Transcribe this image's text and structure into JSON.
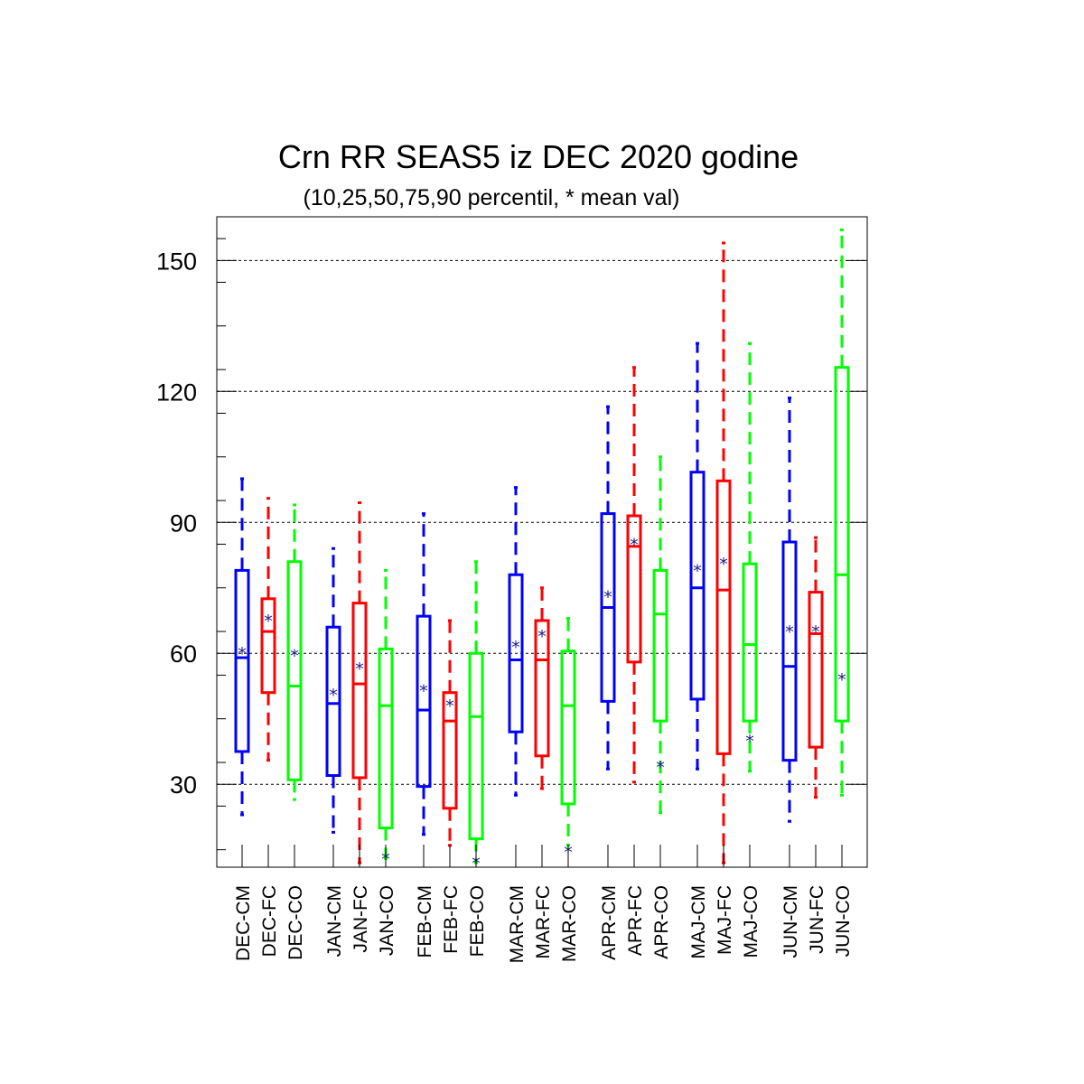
{
  "chart_data": {
    "type": "boxplot",
    "title": "Crn RR SEAS5 iz DEC 2020 godine",
    "subtitle": "(10,25,50,75,90 percentil, * mean val)",
    "xlabel": "",
    "ylabel": "",
    "ylim": [
      11,
      160
    ],
    "yticks": [
      30,
      60,
      90,
      120,
      150
    ],
    "grid": "horizontal dashed at major ticks",
    "mean_symbol": "*",
    "colors": {
      "CM": "#0000ff",
      "FC": "#ff0000",
      "CO": "#00ff00",
      "mean": "#1a1a8c"
    },
    "boxes": [
      {
        "label": "DEC-CM",
        "group": 0,
        "type": "CM",
        "p10": 23,
        "p25": 37.5,
        "p50": 59,
        "p75": 79,
        "p90": 100,
        "mean": 60
      },
      {
        "label": "DEC-FC",
        "group": 0,
        "type": "FC",
        "p10": 35.5,
        "p25": 51,
        "p50": 65,
        "p75": 72.5,
        "p90": 95.5,
        "mean": 67.5
      },
      {
        "label": "DEC-CO",
        "group": 0,
        "type": "CO",
        "p10": 26.5,
        "p25": 31,
        "p50": 52.5,
        "p75": 81,
        "p90": 94,
        "mean": 59.5
      },
      {
        "label": "JAN-CM",
        "group": 1,
        "type": "CM",
        "p10": 19,
        "p25": 32,
        "p50": 48.5,
        "p75": 66,
        "p90": 84,
        "mean": 50.5
      },
      {
        "label": "JAN-FC",
        "group": 1,
        "type": "FC",
        "p10": 12,
        "p25": 31.5,
        "p50": 53,
        "p75": 71.5,
        "p90": 94.5,
        "mean": 56.5
      },
      {
        "label": "JAN-CO",
        "group": 1,
        "type": "CO",
        "p10": 13,
        "p25": 20,
        "p50": 48,
        "p75": 61,
        "p90": 79,
        "mean": 13
      },
      {
        "label": "FEB-CM",
        "group": 2,
        "type": "CM",
        "p10": 18.5,
        "p25": 29.5,
        "p50": 47,
        "p75": 68.5,
        "p90": 92,
        "mean": 51.5
      },
      {
        "label": "FEB-FC",
        "group": 2,
        "type": "FC",
        "p10": 16,
        "p25": 24.5,
        "p50": 44.5,
        "p75": 51,
        "p90": 67.5,
        "mean": 48
      },
      {
        "label": "FEB-CO",
        "group": 2,
        "type": "CO",
        "p10": 12,
        "p25": 17.5,
        "p50": 45.5,
        "p75": 60,
        "p90": 81,
        "mean": 12
      },
      {
        "label": "MAR-CM",
        "group": 3,
        "type": "CM",
        "p10": 27.5,
        "p25": 42,
        "p50": 58.5,
        "p75": 78,
        "p90": 98,
        "mean": 61.5
      },
      {
        "label": "MAR-FC",
        "group": 3,
        "type": "FC",
        "p10": 29,
        "p25": 36.5,
        "p50": 58.5,
        "p75": 67.5,
        "p90": 75,
        "mean": 64
      },
      {
        "label": "MAR-CO",
        "group": 3,
        "type": "CO",
        "p10": 16,
        "p25": 25.5,
        "p50": 48,
        "p75": 60.5,
        "p90": 68,
        "mean": 14.5
      },
      {
        "label": "APR-CM",
        "group": 4,
        "type": "CM",
        "p10": 33.5,
        "p25": 49,
        "p50": 70.5,
        "p75": 92,
        "p90": 116.5,
        "mean": 73
      },
      {
        "label": "APR-FC",
        "group": 4,
        "type": "FC",
        "p10": 30.5,
        "p25": 58,
        "p50": 84.5,
        "p75": 91.5,
        "p90": 125.5,
        "mean": 85
      },
      {
        "label": "APR-CO",
        "group": 4,
        "type": "CO",
        "p10": 23.5,
        "p25": 44.5,
        "p50": 69,
        "p75": 79,
        "p90": 105,
        "mean": 34
      },
      {
        "label": "MAJ-CM",
        "group": 5,
        "type": "CM",
        "p10": 33.5,
        "p25": 49.5,
        "p50": 75,
        "p75": 101.5,
        "p90": 131,
        "mean": 79
      },
      {
        "label": "MAJ-FC",
        "group": 5,
        "type": "FC",
        "p10": 12,
        "p25": 37,
        "p50": 74.5,
        "p75": 99.5,
        "p90": 154,
        "mean": 80.5
      },
      {
        "label": "MAJ-CO",
        "group": 5,
        "type": "CO",
        "p10": 33,
        "p25": 44.5,
        "p50": 62,
        "p75": 80.5,
        "p90": 131,
        "mean": 40
      },
      {
        "label": "JUN-CM",
        "group": 6,
        "type": "CM",
        "p10": 21.5,
        "p25": 35.5,
        "p50": 57,
        "p75": 85.5,
        "p90": 118.5,
        "mean": 65
      },
      {
        "label": "JUN-FC",
        "group": 6,
        "type": "FC",
        "p10": 27,
        "p25": 38.5,
        "p50": 64.5,
        "p75": 74,
        "p90": 86.5,
        "mean": 65
      },
      {
        "label": "JUN-CO",
        "group": 6,
        "type": "CO",
        "p10": 27.5,
        "p25": 44.5,
        "p50": 78,
        "p75": 125.5,
        "p90": 157,
        "mean": 54
      }
    ]
  }
}
